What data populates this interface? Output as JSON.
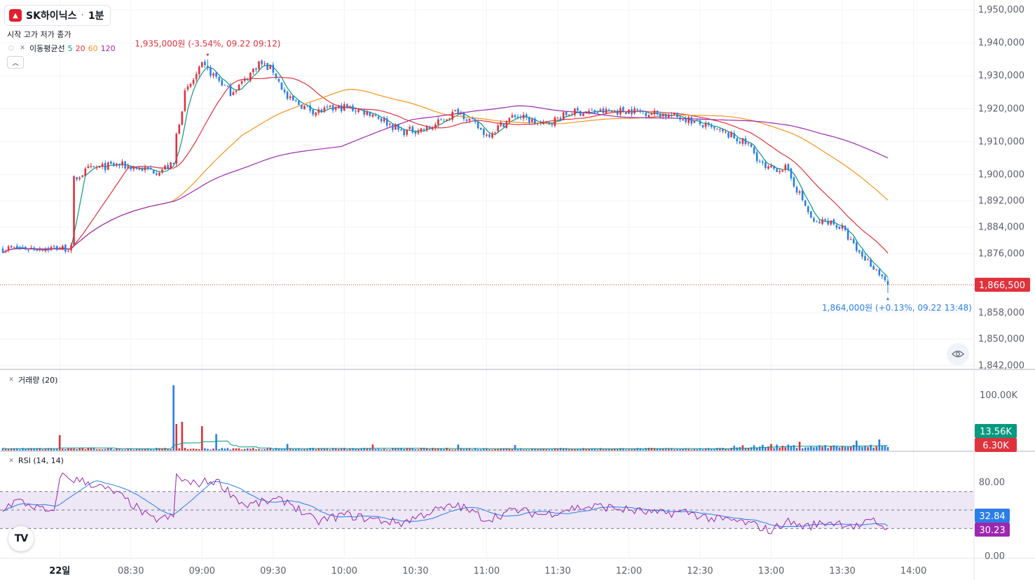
{
  "symbol": {
    "name": "SK하이닉스",
    "sep": "·",
    "interval": "1분"
  },
  "ohlc_labels": "시작 고가 저가 종가",
  "ma_legend": {
    "label": "이동평균선",
    "periods": [
      "5",
      "20",
      "60",
      "120"
    ],
    "colors": [
      "#089981",
      "#e0323c",
      "#f7931a",
      "#9c27b0"
    ]
  },
  "colors": {
    "up": "#e0323c",
    "down": "#2b7de9",
    "rsi": "#9c27b0",
    "rsi_ma": "#2b7de9",
    "vol_ma": "#089981",
    "band": "#ede7f6"
  },
  "icons": {
    "eye": "eye-icon",
    "visibility": "hide-icon",
    "close": "close-icon",
    "collapse": "chevron-up-icon",
    "tv": "tradingview-logo-icon"
  },
  "tv_logo_text": "TV",
  "chart_data": [
    {
      "type": "candlestick",
      "pane": "price",
      "x_ticks": [
        "22일",
        "08:30",
        "09:00",
        "09:30",
        "10:00",
        "10:30",
        "11:00",
        "11:30",
        "12:00",
        "12:30",
        "13:00",
        "13:30",
        "14:00"
      ],
      "y_ticks": [
        "1,950,000",
        "1,940,000",
        "1,930,000",
        "1,920,000",
        "1,910,000",
        "1,900,000",
        "1,892,000",
        "1,884,000",
        "1,876,000",
        "1,858,000",
        "1,850,000",
        "1,842,000"
      ],
      "ylim": [
        1841000,
        1953000
      ],
      "price_anchors": [
        [
          0,
          1877500
        ],
        [
          18,
          1877700
        ],
        [
          24,
          1877500
        ],
        [
          25,
          1898500
        ],
        [
          30,
          1901500
        ],
        [
          40,
          1903000
        ],
        [
          54,
          1901000
        ],
        [
          60,
          1903000
        ],
        [
          61,
          1912000
        ],
        [
          64,
          1924500
        ],
        [
          70,
          1933000
        ],
        [
          75,
          1929500
        ],
        [
          80,
          1925000
        ],
        [
          85,
          1928500
        ],
        [
          90,
          1934000
        ],
        [
          95,
          1931500
        ],
        [
          100,
          1923000
        ],
        [
          110,
          1919000
        ],
        [
          120,
          1920500
        ],
        [
          130,
          1918500
        ],
        [
          140,
          1913000
        ],
        [
          150,
          1914000
        ],
        [
          160,
          1919500
        ],
        [
          170,
          1912000
        ],
        [
          180,
          1918000
        ],
        [
          190,
          1915000
        ],
        [
          200,
          1919000
        ],
        [
          210,
          1919000
        ],
        [
          220,
          1919500
        ],
        [
          230,
          1918500
        ],
        [
          240,
          1917000
        ],
        [
          250,
          1913500
        ],
        [
          255,
          1912000
        ],
        [
          262,
          1909000
        ],
        [
          268,
          1901500
        ],
        [
          275,
          1902000
        ],
        [
          280,
          1894000
        ],
        [
          285,
          1885000
        ],
        [
          290,
          1886000
        ],
        [
          295,
          1883500
        ],
        [
          300,
          1877000
        ],
        [
          306,
          1872000
        ],
        [
          310,
          1868000
        ],
        [
          311,
          1866500
        ]
      ],
      "current_price": "1,866,500",
      "current_value": 1866500,
      "high_annotation": {
        "text": "1,935,000원 (-3.54%, 09.22 09:12)",
        "value": 1935000,
        "bar": 72
      },
      "low_annotation": {
        "text": "1,864,000원 (+0.13%, 09.22 13:48)",
        "value": 1864000,
        "bar": 311
      },
      "moving_averages": [
        5,
        20,
        60,
        120
      ]
    },
    {
      "type": "bar",
      "pane": "volume",
      "legend": "거래량 (20)",
      "y_ticks": [
        "100.00K"
      ],
      "ylim": [
        0,
        125000
      ],
      "spikes": [
        [
          20,
          28000
        ],
        [
          60,
          118000
        ],
        [
          61,
          48000
        ],
        [
          63,
          52000
        ],
        [
          70,
          44000
        ],
        [
          75,
          30000
        ],
        [
          100,
          12000
        ],
        [
          130,
          11000
        ],
        [
          160,
          11000
        ],
        [
          180,
          10000
        ],
        [
          270,
          12000
        ],
        [
          280,
          16000
        ],
        [
          300,
          18000
        ],
        [
          308,
          20000
        ]
      ],
      "badges": [
        {
          "text": "13.56K",
          "value": 13560,
          "color": "#089981"
        },
        {
          "text": "6.30K",
          "value": 6300,
          "color": "#e0323c"
        }
      ]
    },
    {
      "type": "line",
      "pane": "rsi",
      "legend": "RSI (14, 14)",
      "y_ticks": [
        "80.00",
        "0.00"
      ],
      "ylim": [
        0,
        100
      ],
      "band": [
        30,
        70
      ],
      "midline": 50,
      "rsi_anchors": [
        [
          0,
          52
        ],
        [
          5,
          60
        ],
        [
          10,
          55
        ],
        [
          18,
          45
        ],
        [
          20,
          88
        ],
        [
          25,
          83
        ],
        [
          30,
          80
        ],
        [
          40,
          68
        ],
        [
          46,
          55
        ],
        [
          52,
          40
        ],
        [
          60,
          42
        ],
        [
          61,
          87
        ],
        [
          66,
          78
        ],
        [
          75,
          82
        ],
        [
          85,
          55
        ],
        [
          95,
          60
        ],
        [
          100,
          60
        ],
        [
          110,
          37
        ],
        [
          120,
          45
        ],
        [
          130,
          40
        ],
        [
          140,
          36
        ],
        [
          150,
          48
        ],
        [
          160,
          55
        ],
        [
          170,
          40
        ],
        [
          180,
          50
        ],
        [
          190,
          45
        ],
        [
          200,
          52
        ],
        [
          210,
          54
        ],
        [
          220,
          50
        ],
        [
          230,
          46
        ],
        [
          240,
          48
        ],
        [
          250,
          40
        ],
        [
          258,
          38
        ],
        [
          265,
          33
        ],
        [
          270,
          27
        ],
        [
          275,
          38
        ],
        [
          282,
          32
        ],
        [
          290,
          37
        ],
        [
          295,
          36
        ],
        [
          300,
          32
        ],
        [
          306,
          38
        ],
        [
          311,
          30
        ]
      ],
      "badges": [
        {
          "text": "32.84",
          "value": 32.84,
          "color": "#2b7de9"
        },
        {
          "text": "30.23",
          "value": 30.23,
          "color": "#9c27b0"
        }
      ]
    }
  ]
}
